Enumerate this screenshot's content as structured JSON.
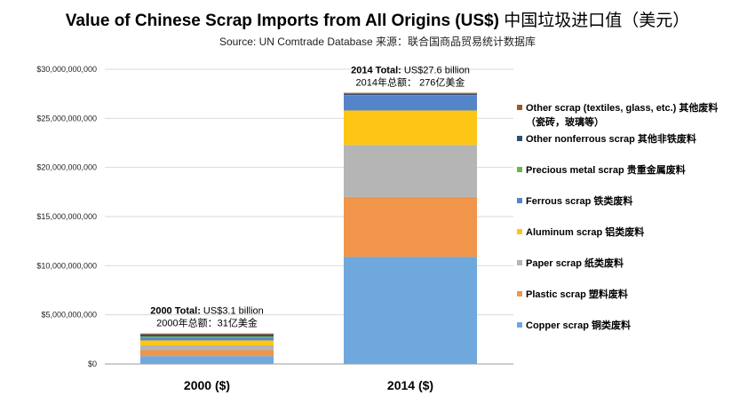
{
  "header": {
    "title_en": "Value of Chinese Scrap Imports from All Origins (US$)",
    "title_cn": "中国垃圾进口值（美元）",
    "subtitle": "Source: UN Comtrade Database  来源：联合国商品贸易统计数据库"
  },
  "chart_data": {
    "type": "bar",
    "stacked": true,
    "categories": [
      "2000 ($)",
      "2014 ($)"
    ],
    "ylim": [
      0,
      30000000000
    ],
    "yticks": [
      0,
      5000000000,
      10000000000,
      15000000000,
      20000000000,
      25000000000,
      30000000000
    ],
    "ytick_labels": [
      "$0",
      "$5,000,000,000",
      "$10,000,000,000",
      "$15,000,000,000",
      "$20,000,000,000",
      "$25,000,000,000",
      "$30,000,000,000"
    ],
    "grid": true,
    "legend_position": "right",
    "series": [
      {
        "name": "Copper scrap 铜类废料",
        "color": "#6fa8dc",
        "values": [
          800000000,
          10900000000
        ]
      },
      {
        "name": "Plastic scrap 塑料废料",
        "color": "#f0954a",
        "values": [
          600000000,
          6100000000
        ]
      },
      {
        "name": "Paper scrap 纸类废料",
        "color": "#b5b5b5",
        "values": [
          500000000,
          5300000000
        ]
      },
      {
        "name": "Aluminum scrap 铝类废料",
        "color": "#fdc615",
        "values": [
          500000000,
          3500000000
        ]
      },
      {
        "name": "Ferrous scrap 铁类废料",
        "color": "#5585c9",
        "values": [
          300000000,
          1500000000
        ]
      },
      {
        "name": "Precious metal scrap 贵重金属废料",
        "color": "#6db54d",
        "values": [
          100000000,
          50000000
        ]
      },
      {
        "name": "Other nonferrous scrap 其他非铁废料",
        "color": "#2f4f7a",
        "values": [
          200000000,
          150000000
        ]
      },
      {
        "name": "Other scrap (textiles, glass, etc.) 其他废料",
        "name_line2": "（瓷砖，玻璃等）",
        "color": "#9c5a22",
        "values": [
          100000000,
          100000000
        ]
      }
    ],
    "annotations": [
      {
        "bold": "2000 Total:",
        "text": " US$3.1 billion",
        "line2": "2000年总额：31亿美金"
      },
      {
        "bold": "2014 Total:",
        "text": " US$27.6 billion",
        "line2": "2014年总额： 276亿美金"
      }
    ]
  }
}
